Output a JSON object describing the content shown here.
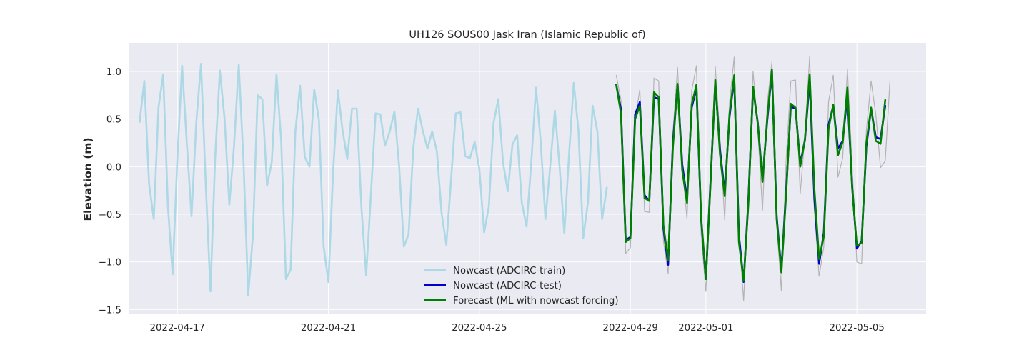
{
  "chart_data": {
    "type": "line",
    "title": "UH126 SOUS00 Jask Iran (Islamic Republic of)",
    "xlabel": "",
    "ylabel": "Elevation (m)",
    "xlim": [
      "2022-04-15T17:00",
      "2022-05-06T20:00"
    ],
    "ylim": [
      -1.55,
      1.3
    ],
    "x_ticks": [
      "2022-04-17",
      "2022-04-21",
      "2022-04-25",
      "2022-04-29",
      "2022-05-01",
      "2022-05-05"
    ],
    "y_ticks": [
      -1.5,
      -1.0,
      -0.5,
      0.0,
      0.5,
      1.0
    ],
    "y_tick_labels": [
      "−1.5",
      "−1.0",
      "−0.5",
      "0.0",
      "0.5",
      "1.0"
    ],
    "grid": true,
    "legend_position": "lower-center",
    "background": "#eaeaf2",
    "series": [
      {
        "name": "Nowcast (ADCIRC-train)",
        "color": "#add8e6",
        "x_start": "2022-04-16T00:00",
        "step_hours": 3,
        "values": [
          0.47,
          0.9,
          -0.18,
          -0.55,
          0.62,
          0.97,
          -0.42,
          -1.13,
          0.09,
          1.06,
          0.25,
          -0.52,
          0.47,
          1.08,
          -0.18,
          -1.31,
          0.1,
          1.01,
          0.5,
          -0.4,
          0.22,
          1.07,
          0.06,
          -1.35,
          -0.72,
          0.75,
          0.71,
          -0.2,
          0.05,
          0.97,
          0.27,
          -1.18,
          -1.08,
          0.37,
          0.85,
          0.1,
          0.0,
          0.81,
          0.49,
          -0.84,
          -1.21,
          -0.05,
          0.8,
          0.38,
          0.08,
          0.61,
          0.61,
          -0.43,
          -1.14,
          -0.3,
          0.56,
          0.55,
          0.22,
          0.37,
          0.58,
          0.0,
          -0.84,
          -0.71,
          0.2,
          0.61,
          0.38,
          0.19,
          0.37,
          0.16,
          -0.49,
          -0.82,
          -0.14,
          0.56,
          0.57,
          0.11,
          0.09,
          0.26,
          -0.03,
          -0.69,
          -0.42,
          0.46,
          0.71,
          0.05,
          -0.26,
          0.23,
          0.33,
          -0.38,
          -0.63,
          0.05,
          0.83,
          0.26,
          -0.55,
          0.0,
          0.59,
          0.0,
          -0.7,
          0.12,
          0.88,
          0.38,
          -0.75,
          -0.38,
          0.64,
          0.37,
          -0.55,
          -0.22
        ]
      },
      {
        "name": "",
        "color": "#b3b3b3",
        "x_start": "2022-04-28T15:00",
        "step_hours": 3,
        "values": [
          0.96,
          0.7,
          -0.91,
          -0.85,
          0.5,
          0.81,
          -0.47,
          -0.48,
          0.93,
          0.9,
          -0.78,
          -1.12,
          0.35,
          1.04,
          0.0,
          -0.55,
          0.8,
          1.06,
          -0.7,
          -1.31,
          -0.2,
          1.05,
          0.3,
          -0.56,
          0.67,
          1.15,
          -0.7,
          -1.41,
          -0.26,
          1.0,
          0.4,
          -0.46,
          0.66,
          1.1,
          -0.6,
          -1.3,
          0.06,
          0.9,
          0.91,
          -0.28,
          0.33,
          1.16,
          -0.46,
          -1.15,
          -0.84,
          0.68,
          0.96,
          -0.11,
          0.09,
          1.02,
          0.0,
          -1.0,
          -1.02,
          0.38,
          0.9,
          0.55,
          -0.01,
          0.06,
          0.9
        ]
      },
      {
        "name": "Nowcast (ADCIRC-test)",
        "color": "#0000cd",
        "x_start": "2022-04-28T15:00",
        "step_hours": 3,
        "values": [
          0.86,
          0.6,
          -0.77,
          -0.74,
          0.55,
          0.68,
          -0.3,
          -0.36,
          0.73,
          0.71,
          -0.65,
          -1.03,
          0.25,
          0.86,
          0.02,
          -0.34,
          0.62,
          0.83,
          -0.55,
          -1.18,
          -0.14,
          0.87,
          0.18,
          -0.27,
          0.52,
          0.93,
          -0.72,
          -1.21,
          -0.35,
          0.82,
          0.46,
          -0.13,
          0.48,
          1.0,
          -0.52,
          -1.09,
          -0.26,
          0.63,
          0.61,
          0.03,
          0.28,
          0.91,
          -0.34,
          -1.02,
          -0.69,
          0.44,
          0.64,
          0.19,
          0.27,
          0.75,
          -0.2,
          -0.86,
          -0.78,
          0.21,
          0.61,
          0.31,
          0.29,
          0.64
        ]
      },
      {
        "name": "Forecast (ML with nowcast forcing)",
        "color": "#008000",
        "x_start": "2022-04-28T15:00",
        "step_hours": 3,
        "values": [
          0.86,
          0.56,
          -0.79,
          -0.75,
          0.5,
          0.64,
          -0.33,
          -0.36,
          0.78,
          0.73,
          -0.62,
          -0.98,
          0.2,
          0.87,
          -0.04,
          -0.38,
          0.65,
          0.86,
          -0.53,
          -1.18,
          -0.17,
          0.91,
          0.13,
          -0.31,
          0.55,
          0.96,
          -0.79,
          -1.2,
          -0.39,
          0.84,
          0.45,
          -0.16,
          0.51,
          1.02,
          -0.55,
          -1.11,
          -0.3,
          0.66,
          0.62,
          0.0,
          0.29,
          0.97,
          -0.24,
          -0.97,
          -0.73,
          0.4,
          0.65,
          0.12,
          0.26,
          0.83,
          -0.22,
          -0.83,
          -0.8,
          0.25,
          0.62,
          0.27,
          0.24,
          0.7
        ]
      }
    ]
  }
}
